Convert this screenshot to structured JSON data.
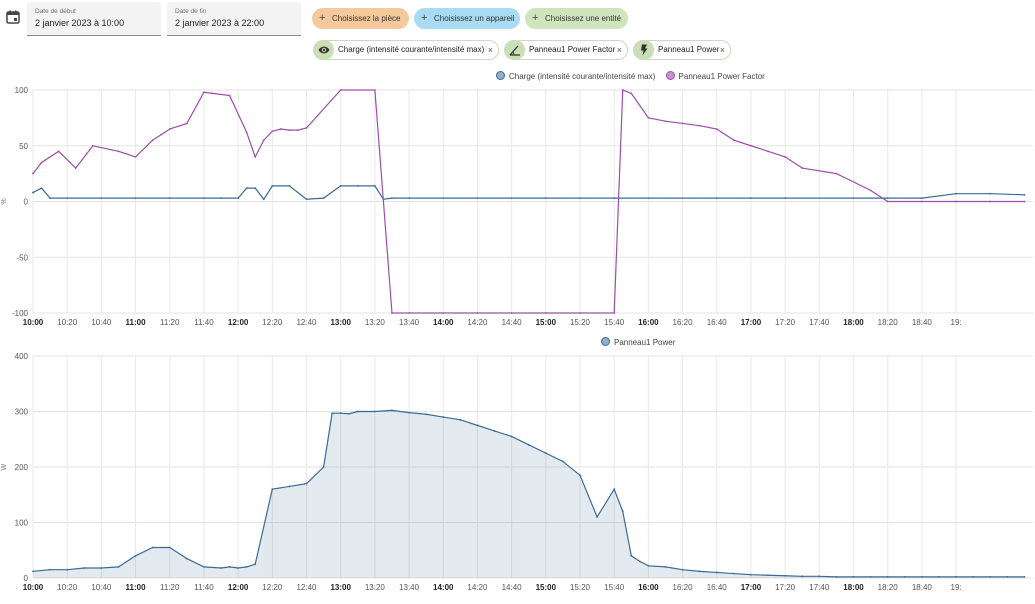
{
  "filters": {
    "start_date": {
      "label": "Date de début",
      "value": "2 janvier 2023 à 10:00"
    },
    "end_date": {
      "label": "Date de fin",
      "value": "2 janvier 2023 à 22:00"
    },
    "pick_area": "Choisissez la pièce",
    "pick_device": "Choisissez un appareil",
    "pick_entity": "Choisissez une entité",
    "colors": {
      "area": "#f6c99c",
      "device": "#a9dcf3",
      "entity": "#cfe5bd"
    }
  },
  "chips": [
    {
      "label": "Charge (intensité courante/intensité max)",
      "icon": "eye-icon",
      "close": "×"
    },
    {
      "label": "Panneau1 Power Factor",
      "icon": "angle-icon",
      "close": "×"
    },
    {
      "label": "Panneau1 Power",
      "icon": "flash-icon",
      "close": "×"
    }
  ],
  "chart_data": [
    {
      "type": "line",
      "ylabel": "%",
      "ylim": [
        -100,
        100
      ],
      "yticks": [
        "100",
        "50",
        "0",
        "-50",
        "-100"
      ],
      "xticks": [
        "10:00",
        "10:20",
        "10:40",
        "11:00",
        "11:20",
        "11:40",
        "12:00",
        "12:20",
        "12:40",
        "13:00",
        "13:20",
        "13:40",
        "14:00",
        "14:20",
        "14:40",
        "15:00",
        "15:20",
        "15:40",
        "16:00",
        "16:20",
        "16:40",
        "17:00",
        "17:20",
        "17:40",
        "18:00",
        "18:20",
        "18:40",
        "19:"
      ],
      "legend_placement": "top",
      "series": [
        {
          "name": "Charge (intensité courante/intensité max)",
          "color": "#3b6b94",
          "x": [
            0,
            5,
            10,
            20,
            40,
            60,
            80,
            100,
            110,
            120,
            125,
            130,
            135,
            140,
            150,
            160,
            170,
            180,
            190,
            200,
            205,
            210,
            220,
            240,
            260,
            280,
            300,
            320,
            340,
            360,
            400,
            420,
            440,
            480,
            500,
            520,
            540,
            560,
            580
          ],
          "y": [
            8,
            12,
            3,
            3,
            3,
            3,
            3,
            3,
            3,
            3,
            12,
            12,
            2,
            14,
            14,
            2,
            3,
            14,
            14,
            14,
            2,
            3,
            3,
            3,
            3,
            3,
            3,
            3,
            3,
            3,
            3,
            3,
            3,
            3,
            3,
            3,
            7,
            7,
            6
          ]
        },
        {
          "name": "Panneau1 Power Factor",
          "color": "#9c4fa8",
          "x": [
            0,
            5,
            15,
            25,
            35,
            50,
            60,
            70,
            75,
            80,
            90,
            100,
            105,
            115,
            125,
            130,
            135,
            140,
            145,
            150,
            155,
            160,
            180,
            200,
            210,
            220,
            240,
            260,
            280,
            300,
            320,
            340,
            345,
            350,
            360,
            370,
            380,
            390,
            400,
            410,
            420,
            430,
            440,
            450,
            470,
            490,
            500,
            520,
            540,
            560,
            580
          ],
          "y": [
            25,
            35,
            45,
            30,
            50,
            45,
            40,
            55,
            60,
            65,
            70,
            98,
            97,
            95,
            62,
            40,
            55,
            63,
            65,
            64,
            64,
            66,
            100,
            100,
            -100,
            -100,
            -100,
            -100,
            -100,
            -100,
            -100,
            -100,
            100,
            97,
            75,
            72,
            70,
            68,
            65,
            55,
            50,
            45,
            40,
            30,
            25,
            10,
            0,
            0,
            0,
            0,
            0
          ]
        }
      ]
    },
    {
      "type": "area",
      "ylabel": "W",
      "ylim": [
        0,
        400
      ],
      "yticks": [
        "400",
        "300",
        "200",
        "100",
        "0"
      ],
      "xticks": [
        "10:00",
        "10:20",
        "10:40",
        "11:00",
        "11:20",
        "11:40",
        "12:00",
        "12:20",
        "12:40",
        "13:00",
        "13:20",
        "13:40",
        "14:00",
        "14:20",
        "14:40",
        "15:00",
        "15:20",
        "15:40",
        "16:00",
        "16:20",
        "16:40",
        "17:00",
        "17:20",
        "17:40",
        "18:00",
        "18:20",
        "18:40",
        "19:"
      ],
      "legend_placement": "top",
      "series": [
        {
          "name": "Panneau1 Power",
          "color": "#3b6b94",
          "x": [
            0,
            10,
            20,
            30,
            40,
            50,
            60,
            70,
            80,
            90,
            100,
            110,
            115,
            120,
            125,
            130,
            140,
            150,
            160,
            170,
            175,
            180,
            185,
            190,
            200,
            210,
            220,
            230,
            240,
            250,
            260,
            270,
            280,
            290,
            300,
            310,
            320,
            330,
            340,
            345,
            350,
            355,
            360,
            370,
            380,
            390,
            400,
            410,
            420,
            430,
            440,
            450,
            460,
            470,
            480,
            490,
            500,
            510,
            520,
            530,
            540,
            550,
            560,
            570,
            580
          ],
          "y": [
            12,
            15,
            15,
            18,
            18,
            20,
            40,
            55,
            55,
            35,
            20,
            18,
            20,
            18,
            20,
            25,
            160,
            165,
            170,
            200,
            297,
            297,
            296,
            300,
            300,
            302,
            298,
            295,
            290,
            285,
            275,
            265,
            255,
            240,
            225,
            210,
            185,
            110,
            160,
            120,
            40,
            30,
            22,
            20,
            15,
            12,
            10,
            8,
            6,
            5,
            4,
            3,
            3,
            2,
            2,
            2,
            2,
            2,
            2,
            2,
            2,
            2,
            2,
            2,
            2
          ]
        }
      ]
    }
  ]
}
